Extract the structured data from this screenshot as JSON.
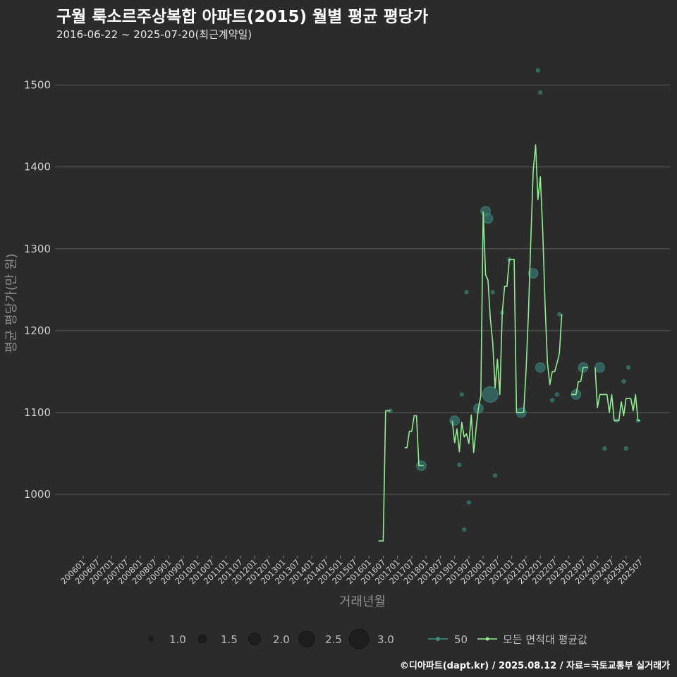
{
  "title": "구월 룩소르주상복합 아파트(2015) 월별 평균 평당가",
  "subtitle": "2016-06-22 ~ 2025-07-20(최근계약일)",
  "caption": "©디아파트(dapt.kr) / 2025.08.12 / 자료=국토교통부 실거래가",
  "colors": {
    "background": "#2b2b2c",
    "line": "#90ee90",
    "bubble": "#3b8c82",
    "grid": "#5a5a5a"
  },
  "chart_data": {
    "type": "line",
    "xlabel": "거래년월",
    "ylabel": "평균 평당가(만 원)",
    "ylim": [
      925,
      1535
    ],
    "y_ticks": [
      1000,
      1100,
      1200,
      1300,
      1400,
      1500
    ],
    "x_tick_labels": [
      "200601",
      "200607",
      "200701",
      "200707",
      "200801",
      "200807",
      "200901",
      "200907",
      "201001",
      "201007",
      "201101",
      "201107",
      "201201",
      "201207",
      "201301",
      "201307",
      "201401",
      "201407",
      "201501",
      "201507",
      "201601",
      "201607",
      "201701",
      "201707",
      "201801",
      "201807",
      "201901",
      "201907",
      "202001",
      "202007",
      "202101",
      "202107",
      "202201",
      "202207",
      "202301",
      "202307",
      "202401",
      "202407",
      "202501",
      "202507"
    ],
    "legend": {
      "size_title": "",
      "size_entries": [
        {
          "label": "1.0",
          "value": 1.0
        },
        {
          "label": "1.5",
          "value": 1.5
        },
        {
          "label": "2.0",
          "value": 2.0
        },
        {
          "label": "2.5",
          "value": 2.5
        },
        {
          "label": "3.0",
          "value": 3.0
        }
      ],
      "series_entries": [
        {
          "label": "50",
          "kind": "bubble"
        },
        {
          "label": "모든 면적대 평균값",
          "kind": "line"
        }
      ]
    },
    "series": [
      {
        "name": "모든 면적대 평균값",
        "segments": [
          [
            {
              "x": "201605",
              "y": 943
            },
            {
              "x": "201606",
              "y": 943
            },
            {
              "x": "201607",
              "y": 943
            },
            {
              "x": "201608",
              "y": 1102
            },
            {
              "x": "201609",
              "y": 1102
            },
            {
              "x": "201610",
              "y": 1102
            }
          ],
          [
            {
              "x": "201704",
              "y": 1057
            },
            {
              "x": "201705",
              "y": 1057
            },
            {
              "x": "201706",
              "y": 1077
            },
            {
              "x": "201707",
              "y": 1077
            },
            {
              "x": "201708",
              "y": 1096
            },
            {
              "x": "201709",
              "y": 1096
            },
            {
              "x": "201710",
              "y": 1035
            },
            {
              "x": "201711",
              "y": 1035
            },
            {
              "x": "201712",
              "y": 1035
            }
          ],
          [
            {
              "x": "201812",
              "y": 1090
            },
            {
              "x": "201901",
              "y": 1063
            },
            {
              "x": "201902",
              "y": 1080
            },
            {
              "x": "201903",
              "y": 1052
            },
            {
              "x": "201904",
              "y": 1088
            },
            {
              "x": "201905",
              "y": 1070
            },
            {
              "x": "201906",
              "y": 1074
            },
            {
              "x": "201907",
              "y": 1062
            },
            {
              "x": "201908",
              "y": 1097
            },
            {
              "x": "201909",
              "y": 1051
            },
            {
              "x": "201910",
              "y": 1080
            },
            {
              "x": "201911",
              "y": 1105
            },
            {
              "x": "201912",
              "y": 1120
            },
            {
              "x": "202001",
              "y": 1345
            },
            {
              "x": "202002",
              "y": 1268
            },
            {
              "x": "202003",
              "y": 1262
            },
            {
              "x": "202004",
              "y": 1215
            },
            {
              "x": "202005",
              "y": 1185
            },
            {
              "x": "202006",
              "y": 1130
            },
            {
              "x": "202007",
              "y": 1165
            },
            {
              "x": "202008",
              "y": 1122
            },
            {
              "x": "202009",
              "y": 1222
            },
            {
              "x": "202010",
              "y": 1254
            },
            {
              "x": "202011",
              "y": 1254
            },
            {
              "x": "202012",
              "y": 1287
            },
            {
              "x": "202101",
              "y": 1287
            },
            {
              "x": "202102",
              "y": 1287
            },
            {
              "x": "202103",
              "y": 1100
            },
            {
              "x": "202104",
              "y": 1100
            },
            {
              "x": "202105",
              "y": 1100
            },
            {
              "x": "202106",
              "y": 1100
            },
            {
              "x": "202107",
              "y": 1150
            },
            {
              "x": "202108",
              "y": 1220
            },
            {
              "x": "202109",
              "y": 1310
            },
            {
              "x": "202110",
              "y": 1395
            },
            {
              "x": "202111",
              "y": 1427
            },
            {
              "x": "202112",
              "y": 1360
            },
            {
              "x": "202201",
              "y": 1388
            },
            {
              "x": "202202",
              "y": 1322
            },
            {
              "x": "202203",
              "y": 1230
            },
            {
              "x": "202204",
              "y": 1160
            },
            {
              "x": "202205",
              "y": 1134
            },
            {
              "x": "202206",
              "y": 1150
            },
            {
              "x": "202207",
              "y": 1150
            },
            {
              "x": "202208",
              "y": 1160
            },
            {
              "x": "202209",
              "y": 1172
            },
            {
              "x": "202210",
              "y": 1220
            }
          ],
          [
            {
              "x": "202302",
              "y": 1122
            },
            {
              "x": "202303",
              "y": 1122
            },
            {
              "x": "202304",
              "y": 1122
            },
            {
              "x": "202305",
              "y": 1138
            },
            {
              "x": "202306",
              "y": 1138
            },
            {
              "x": "202307",
              "y": 1155
            },
            {
              "x": "202308",
              "y": 1155
            },
            {
              "x": "202309",
              "y": 1155
            }
          ],
          [
            {
              "x": "202312",
              "y": 1155
            },
            {
              "x": "202401",
              "y": 1106
            },
            {
              "x": "202402",
              "y": 1122
            },
            {
              "x": "202403",
              "y": 1122
            },
            {
              "x": "202404",
              "y": 1122
            },
            {
              "x": "202405",
              "y": 1122
            },
            {
              "x": "202406",
              "y": 1100
            },
            {
              "x": "202407",
              "y": 1122
            },
            {
              "x": "202408",
              "y": 1090
            },
            {
              "x": "202409",
              "y": 1090
            },
            {
              "x": "202410",
              "y": 1090
            },
            {
              "x": "202411",
              "y": 1113
            },
            {
              "x": "202412",
              "y": 1096
            },
            {
              "x": "202501",
              "y": 1117
            },
            {
              "x": "202502",
              "y": 1117
            },
            {
              "x": "202503",
              "y": 1117
            },
            {
              "x": "202504",
              "y": 1102
            },
            {
              "x": "202505",
              "y": 1122
            },
            {
              "x": "202506",
              "y": 1090
            },
            {
              "x": "202507",
              "y": 1090
            }
          ]
        ]
      },
      {
        "name": "50",
        "kind": "bubble",
        "points": [
          {
            "x": "201610",
            "y": 1102,
            "count": 1
          },
          {
            "x": "201711",
            "y": 1035,
            "count": 2
          },
          {
            "x": "201901",
            "y": 1090,
            "count": 2
          },
          {
            "x": "201903",
            "y": 1036,
            "count": 1
          },
          {
            "x": "201904",
            "y": 1122,
            "count": 1
          },
          {
            "x": "201905",
            "y": 957,
            "count": 1
          },
          {
            "x": "201906",
            "y": 1247,
            "count": 1
          },
          {
            "x": "201907",
            "y": 990,
            "count": 1
          },
          {
            "x": "201911",
            "y": 1105,
            "count": 2
          },
          {
            "x": "202002",
            "y": 1346,
            "count": 2
          },
          {
            "x": "202003",
            "y": 1337,
            "count": 2
          },
          {
            "x": "202004",
            "y": 1122,
            "count": 3
          },
          {
            "x": "202005",
            "y": 1247,
            "count": 1
          },
          {
            "x": "202006",
            "y": 1023,
            "count": 1
          },
          {
            "x": "202009",
            "y": 1222,
            "count": 1
          },
          {
            "x": "202012",
            "y": 1287,
            "count": 1
          },
          {
            "x": "202105",
            "y": 1100,
            "count": 2
          },
          {
            "x": "202110",
            "y": 1270,
            "count": 2
          },
          {
            "x": "202112",
            "y": 1518,
            "count": 1
          },
          {
            "x": "202201",
            "y": 1491,
            "count": 1
          },
          {
            "x": "202201",
            "y": 1155,
            "count": 2
          },
          {
            "x": "202206",
            "y": 1115,
            "count": 1
          },
          {
            "x": "202208",
            "y": 1122,
            "count": 1
          },
          {
            "x": "202209",
            "y": 1220,
            "count": 1
          },
          {
            "x": "202304",
            "y": 1122,
            "count": 2
          },
          {
            "x": "202307",
            "y": 1155,
            "count": 2
          },
          {
            "x": "202402",
            "y": 1155,
            "count": 2
          },
          {
            "x": "202404",
            "y": 1056,
            "count": 1
          },
          {
            "x": "202409",
            "y": 1090,
            "count": 1
          },
          {
            "x": "202412",
            "y": 1138,
            "count": 1
          },
          {
            "x": "202501",
            "y": 1056,
            "count": 1
          },
          {
            "x": "202502",
            "y": 1155,
            "count": 1
          },
          {
            "x": "202506",
            "y": 1090,
            "count": 1
          }
        ]
      }
    ]
  }
}
